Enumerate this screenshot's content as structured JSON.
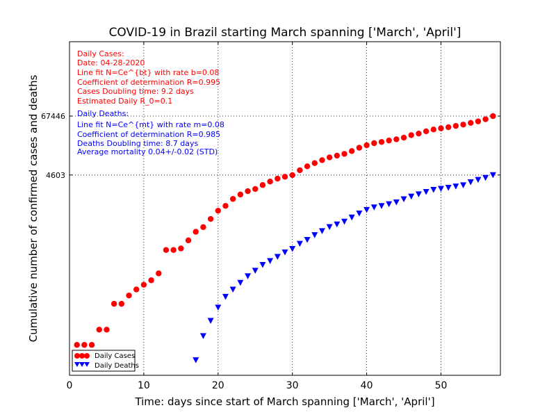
{
  "colors": {
    "cases": "#ff0000",
    "deaths": "#0000ff"
  },
  "chart_data": {
    "type": "scatter",
    "title": "COVID-19 in Brazil starting March spanning ['March', 'April']",
    "xlabel": "Time: days since start of March spanning ['March', 'April']",
    "ylabel": "Cumulative number of confirmed cases and deaths",
    "xlim": [
      0,
      58
    ],
    "ylim": [
      0.5,
      2000000
    ],
    "yscale": "log",
    "xticks": [
      0,
      10,
      20,
      30,
      40,
      50
    ],
    "yticks": [
      4603,
      67446
    ],
    "grid": true,
    "legend_position": "bottom-left",
    "series": [
      {
        "name": "Daily Cases",
        "marker": "circle",
        "color": "#ff0000",
        "x": [
          1,
          2,
          3,
          4,
          5,
          6,
          7,
          8,
          9,
          10,
          11,
          12,
          13,
          14,
          15,
          16,
          17,
          18,
          19,
          20,
          21,
          22,
          23,
          24,
          25,
          26,
          27,
          28,
          29,
          30,
          31,
          32,
          33,
          34,
          35,
          36,
          37,
          38,
          39,
          40,
          41,
          42,
          43,
          44,
          45,
          46,
          47,
          48,
          49,
          50,
          51,
          52,
          53,
          54,
          55,
          56,
          57
        ],
        "y": [
          2,
          2,
          2,
          4,
          4,
          13,
          13,
          19,
          25,
          31,
          38,
          52,
          151,
          151,
          162,
          234,
          346,
          428,
          621,
          904,
          1128,
          1546,
          1891,
          2201,
          2433,
          2915,
          3417,
          3904,
          4256,
          4579,
          5717,
          6836,
          7910,
          9056,
          10278,
          11130,
          12056,
          13717,
          15927,
          17857,
          19638,
          20727,
          22169,
          23430,
          25262,
          28320,
          30425,
          33682,
          36599,
          38654,
          40581,
          43079,
          45757,
          49492,
          52995,
          58509,
          67446
        ]
      },
      {
        "name": "Daily Deaths",
        "marker": "triangle-down",
        "color": "#0000ff",
        "x": [
          17,
          18,
          19,
          20,
          21,
          22,
          23,
          24,
          25,
          26,
          27,
          28,
          29,
          30,
          31,
          32,
          33,
          34,
          35,
          36,
          37,
          38,
          39,
          40,
          41,
          42,
          43,
          44,
          45,
          46,
          47,
          48,
          49,
          50,
          51,
          52,
          53,
          54,
          55,
          56,
          57
        ],
        "y": [
          1,
          3,
          6,
          11,
          18,
          25,
          34,
          46,
          59,
          77,
          92,
          111,
          136,
          159,
          201,
          240,
          299,
          359,
          432,
          486,
          553,
          667,
          800,
          941,
          1056,
          1124,
          1223,
          1328,
          1532,
          1736,
          1924,
          2141,
          2354,
          2462,
          2587,
          2741,
          2906,
          3331,
          3704,
          4057,
          4603
        ]
      }
    ],
    "annotations": {
      "cases": [
        "Daily Cases:",
        "Date: 04-28-2020",
        "Line fit N=Ce^{bt} with rate b=0.08",
        "Coefficient of determination R=0.995",
        "Cases Doubling time: 9.2 days",
        "Estimated Daily R_0=0.1"
      ],
      "deaths": [
        "Daily Deaths:",
        "Line fit N=Ce^{mt} with rate m=0.08",
        "Coefficient of determination R=0.985",
        "Deaths Doubling time: 8.7 days",
        "Average mortality 0.04+/-0.02 (STD)"
      ]
    }
  }
}
